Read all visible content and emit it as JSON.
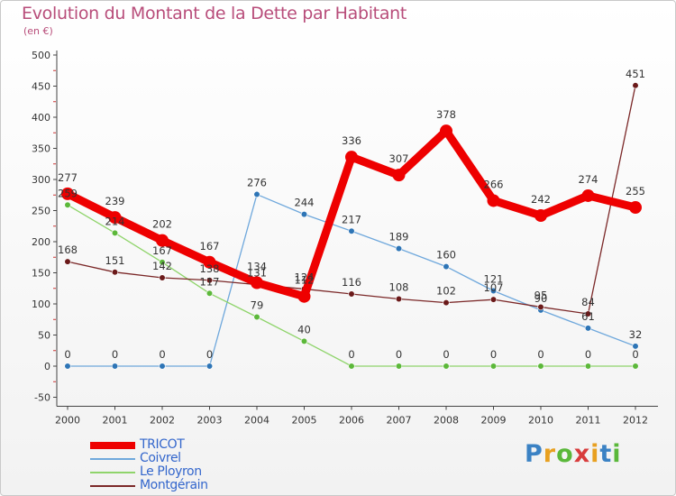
{
  "header": {
    "title": "Evolution du Montant de la Dette par Habitant",
    "subtitle": "(en €)"
  },
  "logo": {
    "text": "Proxiti",
    "letters": [
      "P",
      "r",
      "o",
      "x",
      "i",
      "t",
      "i"
    ],
    "colors": [
      "#3b82c4",
      "#e8a020",
      "#5ab83a",
      "#d83c3c",
      "#e8a020",
      "#3b82c4",
      "#5ab83a"
    ]
  },
  "chart_data": {
    "type": "line",
    "title": "Evolution du Montant de la Dette par Habitant",
    "subtitle": "(en €)",
    "xlabel": "",
    "ylabel": "",
    "ylim": [
      -50,
      500
    ],
    "yticks": [
      -50,
      0,
      50,
      100,
      150,
      200,
      250,
      300,
      350,
      400,
      450,
      500
    ],
    "grid": false,
    "legend": "bottom-left",
    "x": [
      "2000",
      "2001",
      "2002",
      "2003",
      "2004",
      "2005",
      "2006",
      "2007",
      "2008",
      "2009",
      "2010",
      "2011",
      "2012"
    ],
    "series": [
      {
        "name": "TRICOT",
        "color": "#ee0000",
        "pointColor": "#ee0000",
        "bold": true,
        "values": [
          277,
          239,
          202,
          167,
          134,
          112,
          336,
          307,
          378,
          266,
          242,
          274,
          255
        ],
        "labels": [
          "277",
          "239",
          "202",
          "167",
          "134",
          "112",
          "336",
          "307",
          "378",
          "266",
          "242",
          "274",
          "255"
        ]
      },
      {
        "name": "Coivrel",
        "color": "#6fa8dc",
        "pointColor": "#2e75b6",
        "bold": false,
        "values": [
          0,
          0,
          0,
          0,
          276,
          244,
          217,
          189,
          160,
          121,
          90,
          61,
          32
        ],
        "labels": [
          "0",
          "0",
          "0",
          "0",
          "276",
          "244",
          "217",
          "189",
          "160",
          "121",
          "90",
          "61",
          "32"
        ]
      },
      {
        "name": "Le Ployron",
        "color": "#8fd46b",
        "pointColor": "#5cb83a",
        "bold": false,
        "values": [
          259,
          214,
          167,
          117,
          79,
          40,
          0,
          0,
          0,
          0,
          0,
          0,
          0
        ],
        "labels": [
          "259",
          "214",
          "167",
          "117",
          "79",
          "40",
          "0",
          "0",
          "0",
          "0",
          "0",
          "0",
          "0"
        ]
      },
      {
        "name": "Montgérain",
        "color": "#7b2828",
        "pointColor": "#6b1a1a",
        "bold": false,
        "values": [
          168,
          151,
          142,
          138,
          131,
          124,
          116,
          108,
          102,
          107,
          95,
          84,
          451
        ],
        "labels": [
          "168",
          "151",
          "142",
          "138",
          "131",
          "124",
          "116",
          "108",
          "102",
          "107",
          "95",
          "84",
          "451"
        ]
      }
    ]
  }
}
